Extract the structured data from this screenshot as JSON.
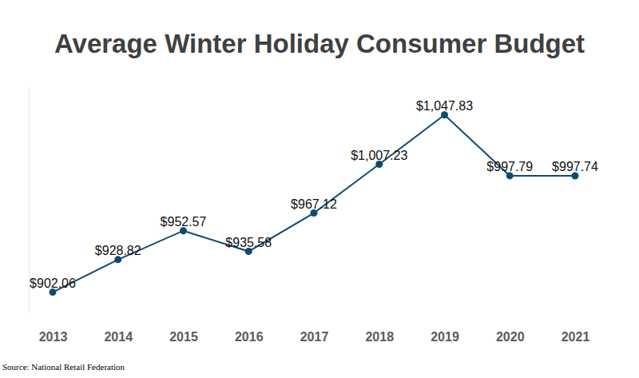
{
  "chart_data": {
    "type": "line",
    "title": "Average Winter Holiday Consumer Budget",
    "source": "Source: National Retail Federation",
    "categories": [
      "2013",
      "2014",
      "2015",
      "2016",
      "2017",
      "2018",
      "2019",
      "2020",
      "2021"
    ],
    "values": [
      902.06,
      928.82,
      952.57,
      935.58,
      967.12,
      1007.23,
      1047.83,
      997.79,
      997.74
    ],
    "value_labels": [
      "$902.06",
      "$928.82",
      "$952.57",
      "$935.58",
      "$967.12",
      "$1,007.23",
      "$1,047.83",
      "$997.79",
      "$997.74"
    ],
    "data_labels": true,
    "color": "#0e4a72",
    "marker": "circle",
    "line_style": "solid",
    "ylim": [
      886,
      1070
    ],
    "yticks": [],
    "grid": false,
    "tick_labels": "x"
  }
}
